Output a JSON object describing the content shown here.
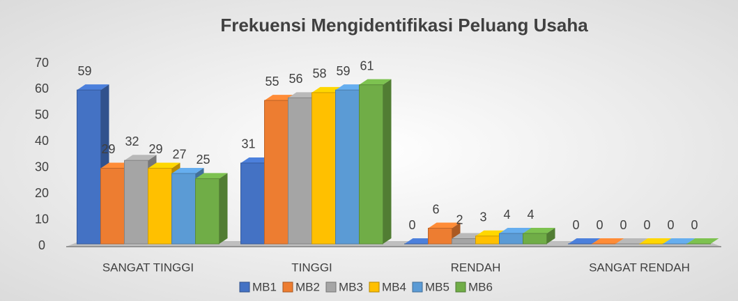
{
  "chart_data": {
    "type": "bar3d",
    "title": "Frekuensi Mengidentifikasi Peluang Usaha",
    "categories": [
      "SANGAT TINGGI",
      "TINGGI",
      "RENDAH",
      "SANGAT RENDAH"
    ],
    "series": [
      {
        "name": "MB1",
        "color": "#4472c4",
        "values": [
          59,
          31,
          0,
          0
        ]
      },
      {
        "name": "MB2",
        "color": "#ed7d31",
        "values": [
          29,
          55,
          6,
          0
        ]
      },
      {
        "name": "MB3",
        "color": "#a5a5a5",
        "values": [
          32,
          56,
          2,
          0
        ]
      },
      {
        "name": "MB4",
        "color": "#ffc000",
        "values": [
          29,
          58,
          3,
          0
        ]
      },
      {
        "name": "MB5",
        "color": "#5b9bd5",
        "values": [
          27,
          59,
          4,
          0
        ]
      },
      {
        "name": "MB6",
        "color": "#70ad47",
        "values": [
          25,
          61,
          4,
          0
        ]
      }
    ],
    "ylim": [
      0,
      70
    ],
    "yticks": [
      0,
      10,
      20,
      30,
      40,
      50,
      60,
      70
    ],
    "legend": "bottom"
  }
}
